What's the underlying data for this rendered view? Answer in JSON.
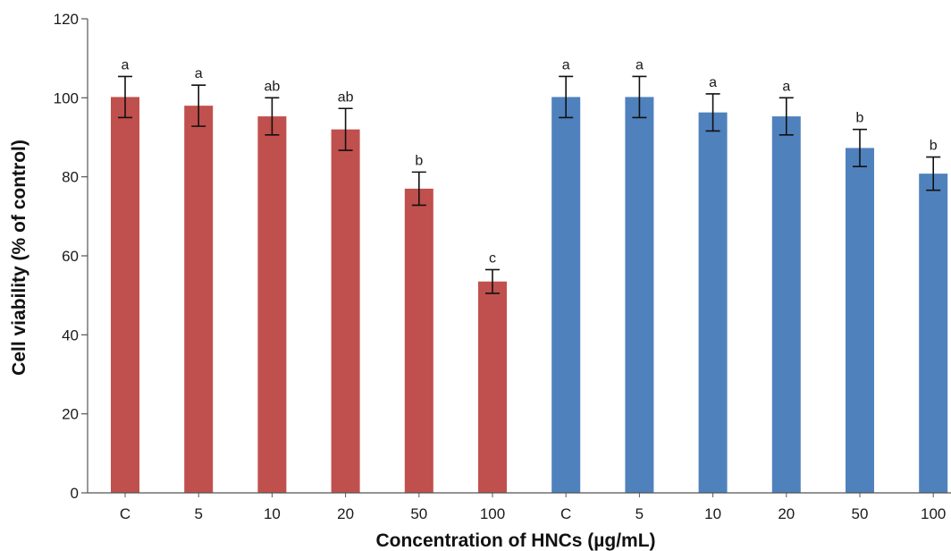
{
  "chart_data": {
    "type": "bar",
    "xlabel": "Concentration of HNCs (µg/mL)",
    "ylabel": "Cell viability (% of control)",
    "ylim": [
      0,
      120
    ],
    "yticks": [
      0,
      20,
      40,
      60,
      80,
      100,
      120
    ],
    "grid": false,
    "legend": "none",
    "series": [
      {
        "color": "#c0504d",
        "categories": [
          "C",
          "5",
          "10",
          "20",
          "50",
          "100"
        ],
        "values": [
          100.2,
          98.0,
          95.3,
          92.0,
          77.0,
          53.5
        ],
        "errors": [
          5.2,
          5.2,
          4.7,
          5.3,
          4.2,
          3.0
        ],
        "letters": [
          "a",
          "a",
          "ab",
          "ab",
          "b",
          "c"
        ]
      },
      {
        "color": "#4f81bd",
        "categories": [
          "C",
          "5",
          "10",
          "20",
          "50",
          "100"
        ],
        "values": [
          100.2,
          100.2,
          96.3,
          95.3,
          87.3,
          80.8
        ],
        "errors": [
          5.2,
          5.2,
          4.7,
          4.7,
          4.7,
          4.2
        ],
        "letters": [
          "a",
          "a",
          "a",
          "a",
          "b",
          "b"
        ]
      }
    ]
  }
}
